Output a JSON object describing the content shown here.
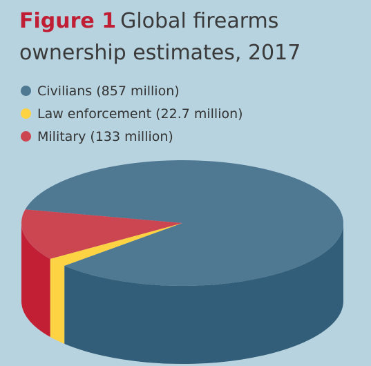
{
  "figure_label": "Figure 1",
  "figure_title": "Global firearms ownership estimates, 2017",
  "chart_data": {
    "type": "pie",
    "title": "Global firearms ownership estimates, 2017",
    "units": "million",
    "legend_position": "top-left",
    "slices": [
      {
        "label": "Civilians (857 million)",
        "name": "Civilians",
        "value": 857,
        "color": "#4f7893",
        "side_color": "#325e79"
      },
      {
        "label": "Law enforcement (22.7 million)",
        "name": "Law enforcement",
        "value": 22.7,
        "color": "#fed343",
        "side_color": "#fed343"
      },
      {
        "label": "Military (133 million)",
        "name": "Military",
        "value": 133,
        "color": "#cc4652",
        "side_color": "#c21f35"
      }
    ]
  }
}
